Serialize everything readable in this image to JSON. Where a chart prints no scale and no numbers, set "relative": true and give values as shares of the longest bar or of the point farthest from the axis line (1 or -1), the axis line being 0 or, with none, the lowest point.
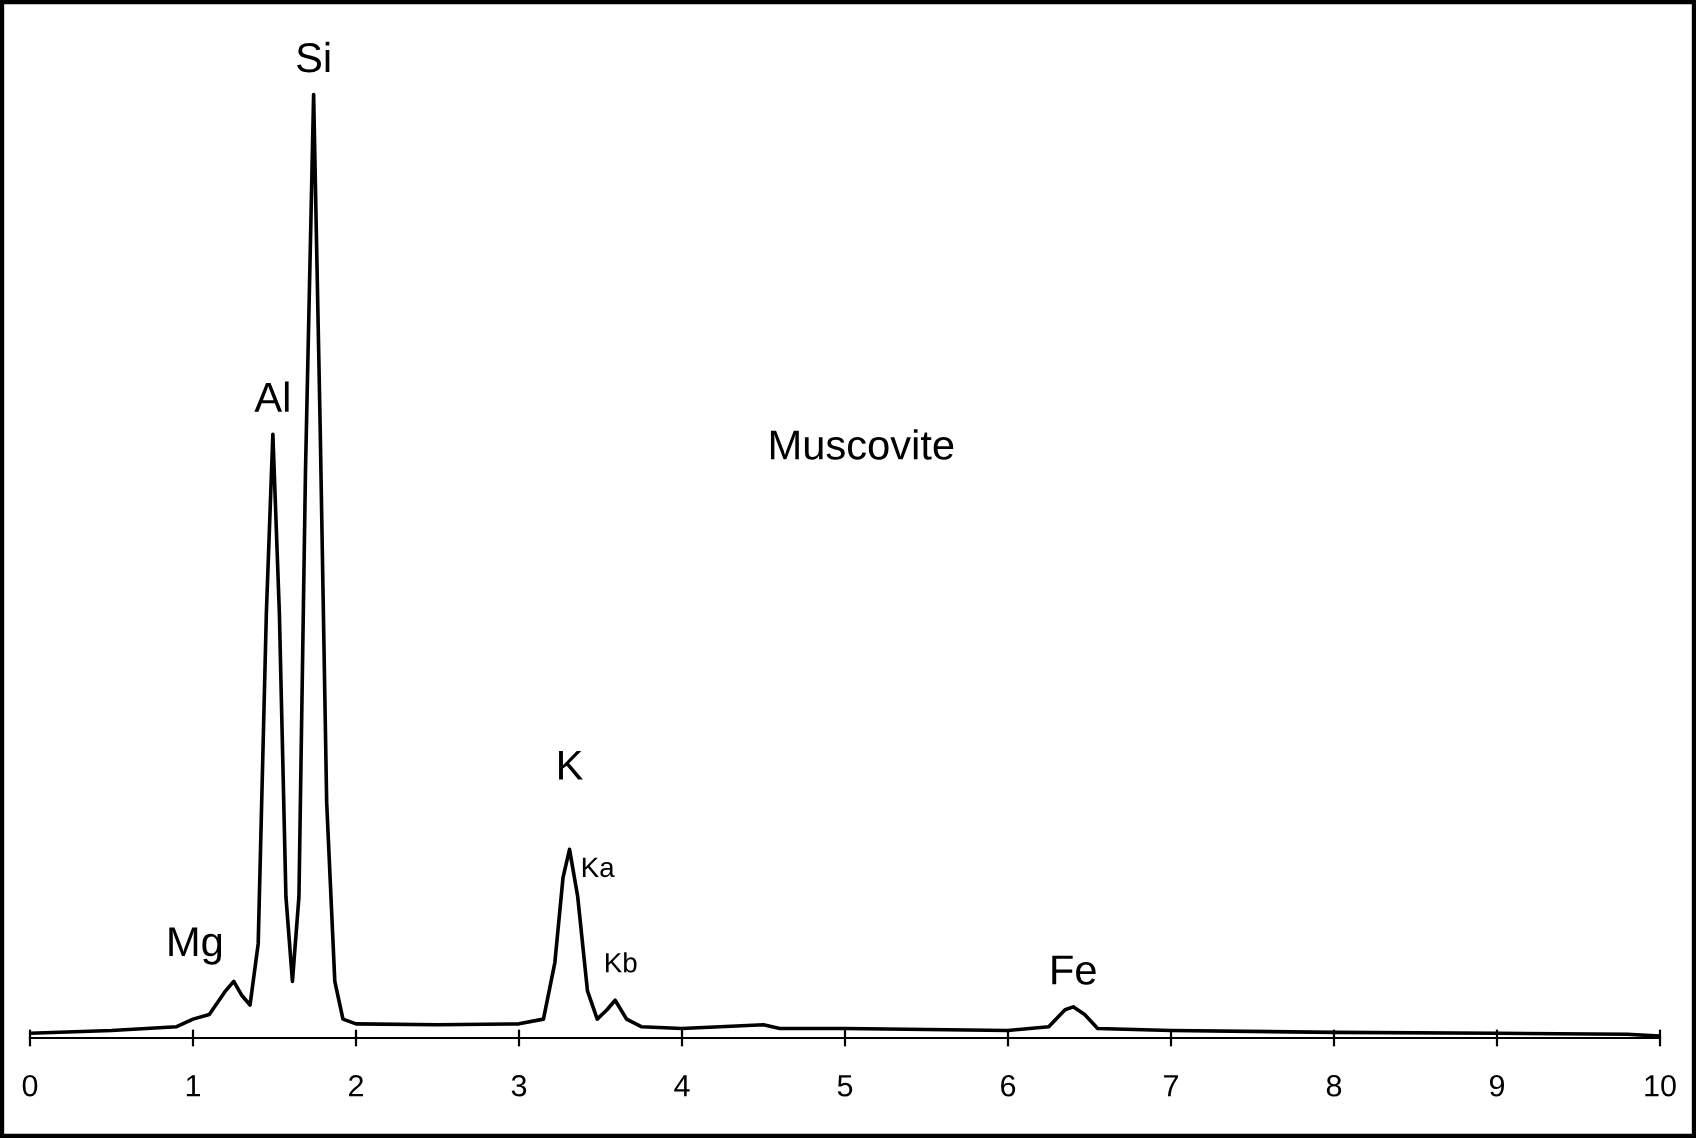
{
  "chart_data": {
    "type": "line",
    "relative": true,
    "x": [
      0,
      0.5,
      0.9,
      1.0,
      1.1,
      1.2,
      1.25,
      1.3,
      1.35,
      1.4,
      1.45,
      1.49,
      1.53,
      1.57,
      1.61,
      1.65,
      1.69,
      1.74,
      1.78,
      1.82,
      1.87,
      1.92,
      2.0,
      2.5,
      3.0,
      3.15,
      3.22,
      3.27,
      3.31,
      3.36,
      3.42,
      3.48,
      3.54,
      3.59,
      3.66,
      3.75,
      4.0,
      4.5,
      4.6,
      5.0,
      6.0,
      6.25,
      6.35,
      6.4,
      6.47,
      6.55,
      7.0,
      8.0,
      9.0,
      9.8,
      10
    ],
    "series": [
      {
        "color": "#000000",
        "values": [
          0.005,
          0.008,
          0.012,
          0.02,
          0.025,
          0.05,
          0.06,
          0.045,
          0.035,
          0.1,
          0.45,
          0.64,
          0.45,
          0.15,
          0.06,
          0.15,
          0.6,
          1.0,
          0.65,
          0.25,
          0.06,
          0.02,
          0.015,
          0.014,
          0.015,
          0.02,
          0.08,
          0.17,
          0.2,
          0.15,
          0.05,
          0.02,
          0.03,
          0.04,
          0.02,
          0.012,
          0.01,
          0.014,
          0.01,
          0.01,
          0.008,
          0.012,
          0.03,
          0.033,
          0.025,
          0.01,
          0.008,
          0.006,
          0.005,
          0.004,
          0.002
        ]
      }
    ],
    "xlim": [
      0,
      10
    ],
    "xticks": [
      0,
      1,
      2,
      3,
      4,
      5,
      6,
      7,
      8,
      9,
      10
    ],
    "tick_labels": "x",
    "grid": false,
    "legend": false,
    "marker": "none",
    "line_style": "solid",
    "annotations": [
      {
        "text": "Mg",
        "x": 1.25,
        "y": 0.06
      },
      {
        "text": "Al",
        "x": 1.49,
        "y": 0.64
      },
      {
        "text": "Si",
        "x": 1.74,
        "y": 1.0
      },
      {
        "text": "K",
        "x": 3.31,
        "y": 0.2
      },
      {
        "text": "Ka",
        "x": 3.31,
        "y": 0.2
      },
      {
        "text": "Kb",
        "x": 3.59,
        "y": 0.04
      },
      {
        "text": "Fe",
        "x": 6.4,
        "y": 0.033
      },
      "Muscovite"
    ]
  }
}
